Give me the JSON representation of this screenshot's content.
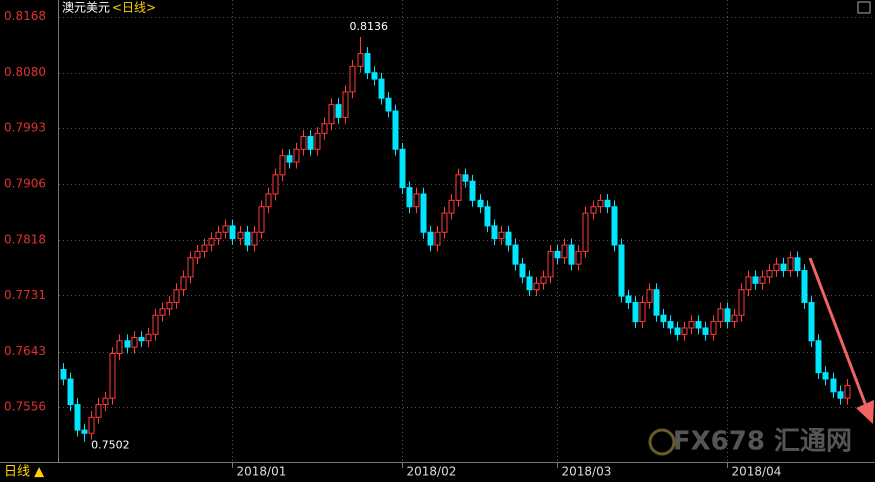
{
  "chart_data": {
    "type": "candlestick",
    "title": "澳元美元",
    "subtitle": "<日线>",
    "period_label": "日线 ▲",
    "watermark": "FX678 汇通网",
    "annotations": [
      "0.8136",
      "0.7502"
    ],
    "up_color": "#ff3b3b",
    "down_color": "#00e6ff",
    "ylim": [
      0.747,
      0.8172
    ],
    "yticks": [
      0.8168,
      {
        "value": 0.808,
        "label": "0.8080"
      },
      0.7993,
      0.7906,
      0.7818,
      0.7731,
      0.7643,
      0.7556
    ],
    "grid": true,
    "categories": [
      null,
      null,
      null,
      null,
      null,
      null,
      null,
      null,
      null,
      null,
      null,
      null,
      null,
      null,
      null,
      null,
      null,
      null,
      null,
      null,
      null,
      null,
      null,
      null,
      "2018/01",
      null,
      null,
      null,
      null,
      null,
      null,
      null,
      null,
      null,
      null,
      null,
      null,
      null,
      null,
      null,
      null,
      null,
      null,
      null,
      null,
      null,
      null,
      null,
      "2018/02",
      null,
      null,
      null,
      null,
      null,
      null,
      null,
      null,
      null,
      null,
      null,
      null,
      null,
      null,
      null,
      null,
      null,
      null,
      null,
      null,
      null,
      "2018/03",
      null,
      null,
      null,
      null,
      null,
      null,
      null,
      null,
      null,
      null,
      null,
      null,
      null,
      null,
      null,
      null,
      null,
      null,
      null,
      null,
      null,
      null,
      null,
      "2018/04",
      null,
      null,
      null,
      null,
      null,
      null,
      null,
      null,
      null,
      null,
      null,
      null,
      null,
      null,
      null,
      null,
      null
    ],
    "open": [
      0.7615,
      0.76,
      0.756,
      0.752,
      0.7515,
      0.754,
      0.756,
      0.757,
      0.764,
      0.766,
      0.765,
      0.7665,
      0.766,
      0.767,
      0.77,
      0.771,
      0.772,
      0.774,
      0.776,
      0.779,
      0.78,
      0.781,
      0.782,
      0.783,
      0.784,
      0.782,
      0.783,
      0.781,
      0.783,
      0.787,
      0.789,
      0.792,
      0.795,
      0.794,
      0.796,
      0.798,
      0.796,
      0.7985,
      0.8,
      0.803,
      0.801,
      0.805,
      0.809,
      0.811,
      0.808,
      0.807,
      0.804,
      0.802,
      0.796,
      0.79,
      0.787,
      0.789,
      0.783,
      0.781,
      0.783,
      0.786,
      0.788,
      0.792,
      0.791,
      0.788,
      0.787,
      0.784,
      0.782,
      0.783,
      0.781,
      0.778,
      0.776,
      0.774,
      0.775,
      0.776,
      0.78,
      0.779,
      0.781,
      0.778,
      0.78,
      0.786,
      0.787,
      0.788,
      0.787,
      0.781,
      0.773,
      0.772,
      0.769,
      0.772,
      0.774,
      0.77,
      0.769,
      0.768,
      0.767,
      0.768,
      0.769,
      0.768,
      0.767,
      0.769,
      0.771,
      0.769,
      0.77,
      0.774,
      0.776,
      0.775,
      0.776,
      0.777,
      0.778,
      0.777,
      0.779,
      0.777,
      0.772,
      0.766,
      0.761,
      0.76,
      0.758,
      0.757
    ],
    "high": [
      0.7625,
      0.761,
      0.757,
      0.753,
      0.755,
      0.757,
      0.758,
      0.765,
      0.767,
      0.767,
      0.7675,
      0.7675,
      0.768,
      0.771,
      0.772,
      0.773,
      0.775,
      0.777,
      0.78,
      0.781,
      0.782,
      0.783,
      0.784,
      0.785,
      0.785,
      0.784,
      0.784,
      0.784,
      0.788,
      0.79,
      0.793,
      0.796,
      0.796,
      0.797,
      0.799,
      0.799,
      0.7995,
      0.801,
      0.804,
      0.804,
      0.806,
      0.81,
      0.8136,
      0.812,
      0.809,
      0.808,
      0.805,
      0.803,
      0.797,
      0.791,
      0.79,
      0.79,
      0.784,
      0.784,
      0.787,
      0.789,
      0.793,
      0.793,
      0.792,
      0.789,
      0.788,
      0.785,
      0.784,
      0.784,
      0.782,
      0.779,
      0.777,
      0.776,
      0.777,
      0.781,
      0.781,
      0.782,
      0.782,
      0.781,
      0.787,
      0.788,
      0.789,
      0.789,
      0.788,
      0.782,
      0.774,
      0.773,
      0.773,
      0.775,
      0.775,
      0.771,
      0.77,
      0.769,
      0.769,
      0.77,
      0.77,
      0.769,
      0.77,
      0.772,
      0.772,
      0.771,
      0.775,
      0.777,
      0.777,
      0.777,
      0.778,
      0.779,
      0.779,
      0.78,
      0.78,
      0.778,
      0.773,
      0.767,
      0.762,
      0.761,
      0.759,
      0.76
    ],
    "low": [
      0.759,
      0.755,
      0.751,
      0.7502,
      0.7505,
      0.753,
      0.755,
      0.756,
      0.763,
      0.764,
      0.764,
      0.765,
      0.765,
      0.766,
      0.769,
      0.77,
      0.771,
      0.773,
      0.775,
      0.778,
      0.779,
      0.78,
      0.781,
      0.782,
      0.781,
      0.781,
      0.78,
      0.78,
      0.782,
      0.786,
      0.788,
      0.791,
      0.793,
      0.793,
      0.795,
      0.795,
      0.795,
      0.7975,
      0.799,
      0.8,
      0.8,
      0.804,
      0.808,
      0.807,
      0.806,
      0.803,
      0.801,
      0.795,
      0.789,
      0.786,
      0.786,
      0.782,
      0.78,
      0.78,
      0.782,
      0.785,
      0.787,
      0.79,
      0.787,
      0.786,
      0.783,
      0.781,
      0.781,
      0.78,
      0.777,
      0.775,
      0.773,
      0.773,
      0.774,
      0.775,
      0.778,
      0.778,
      0.777,
      0.777,
      0.779,
      0.785,
      0.786,
      0.786,
      0.78,
      0.772,
      0.771,
      0.768,
      0.768,
      0.771,
      0.769,
      0.768,
      0.767,
      0.766,
      0.766,
      0.767,
      0.767,
      0.766,
      0.766,
      0.768,
      0.768,
      0.768,
      0.769,
      0.773,
      0.774,
      0.774,
      0.775,
      0.776,
      0.776,
      0.776,
      0.776,
      0.771,
      0.765,
      0.76,
      0.759,
      0.757,
      0.756,
      0.756
    ],
    "close": [
      0.76,
      0.756,
      0.752,
      0.7515,
      0.754,
      0.756,
      0.757,
      0.764,
      0.766,
      0.765,
      0.7665,
      0.766,
      0.767,
      0.77,
      0.771,
      0.772,
      0.774,
      0.776,
      0.779,
      0.78,
      0.781,
      0.782,
      0.783,
      0.784,
      0.782,
      0.783,
      0.781,
      0.783,
      0.787,
      0.789,
      0.792,
      0.795,
      0.794,
      0.796,
      0.798,
      0.796,
      0.7985,
      0.8,
      0.803,
      0.801,
      0.805,
      0.809,
      0.811,
      0.808,
      0.807,
      0.804,
      0.802,
      0.796,
      0.79,
      0.787,
      0.789,
      0.783,
      0.781,
      0.783,
      0.786,
      0.788,
      0.792,
      0.791,
      0.788,
      0.787,
      0.784,
      0.782,
      0.783,
      0.781,
      0.778,
      0.776,
      0.774,
      0.775,
      0.776,
      0.78,
      0.779,
      0.781,
      0.778,
      0.78,
      0.786,
      0.787,
      0.788,
      0.787,
      0.781,
      0.773,
      0.772,
      0.769,
      0.772,
      0.774,
      0.77,
      0.769,
      0.768,
      0.767,
      0.768,
      0.769,
      0.768,
      0.767,
      0.769,
      0.771,
      0.769,
      0.77,
      0.774,
      0.776,
      0.775,
      0.776,
      0.777,
      0.778,
      0.777,
      0.779,
      0.777,
      0.772,
      0.766,
      0.761,
      0.76,
      0.758,
      0.757,
      0.759
    ]
  }
}
